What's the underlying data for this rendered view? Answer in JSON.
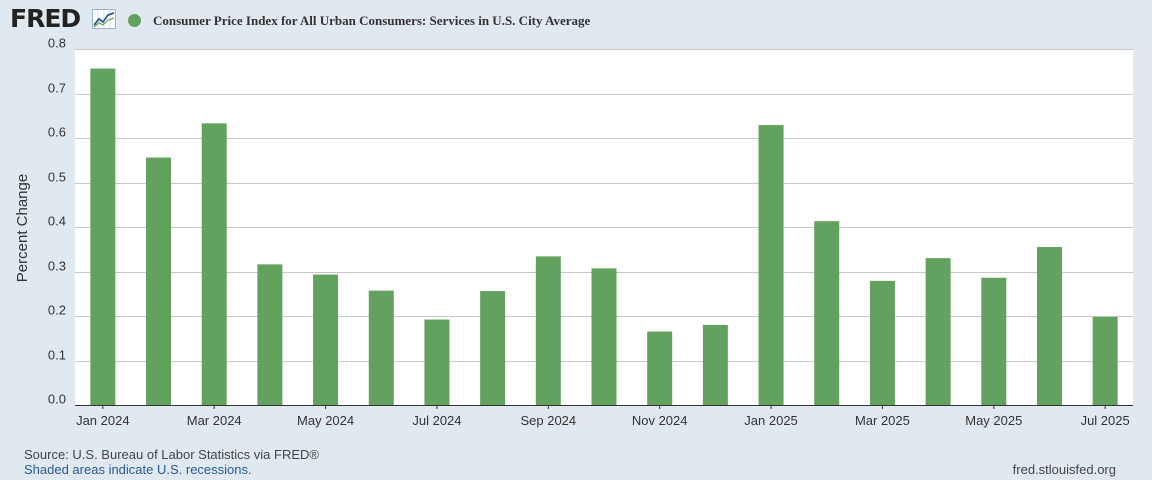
{
  "header": {
    "logo_text": "FRED",
    "logo_icon": "fred-trend-icon",
    "series_title": "Consumer Price Index for All Urban Consumers: Services in U.S. City Average"
  },
  "colors": {
    "bar": "#63a15f",
    "plot_bg": "#ffffff",
    "page_bg": "#e1e9f0",
    "grid": "#c8c8c8"
  },
  "chart_data": {
    "type": "bar",
    "title": "Consumer Price Index for All Urban Consumers: Services in U.S. City Average",
    "xlabel": "",
    "ylabel": "Percent Change",
    "ylim": [
      0,
      0.8
    ],
    "yticks": [
      "0.0",
      "0.1",
      "0.2",
      "0.3",
      "0.4",
      "0.5",
      "0.6",
      "0.7",
      "0.8"
    ],
    "categories": [
      "Jan 2024",
      "Feb 2024",
      "Mar 2024",
      "Apr 2024",
      "May 2024",
      "Jun 2024",
      "Jul 2024",
      "Aug 2024",
      "Sep 2024",
      "Oct 2024",
      "Nov 2024",
      "Dec 2024",
      "Jan 2025",
      "Feb 2025",
      "Mar 2025",
      "Apr 2025",
      "May 2025",
      "Jun 2025",
      "Jul 2025"
    ],
    "values": [
      0.756,
      0.556,
      0.633,
      0.316,
      0.293,
      0.257,
      0.192,
      0.256,
      0.334,
      0.307,
      0.165,
      0.18,
      0.629,
      0.413,
      0.279,
      0.33,
      0.286,
      0.355,
      0.198
    ],
    "xtick_labels": [
      "Jan 2024",
      "Mar 2024",
      "May 2024",
      "Jul 2024",
      "Sep 2024",
      "Nov 2024",
      "Jan 2025",
      "Mar 2025",
      "May 2025",
      "Jul 2025"
    ],
    "grid": true,
    "legend": "top-left"
  },
  "footer": {
    "source": "Source: U.S. Bureau of Labor Statistics via FRED®",
    "recession_note": "Shaded areas indicate U.S. recessions.",
    "url": "fred.stlouisfed.org"
  }
}
